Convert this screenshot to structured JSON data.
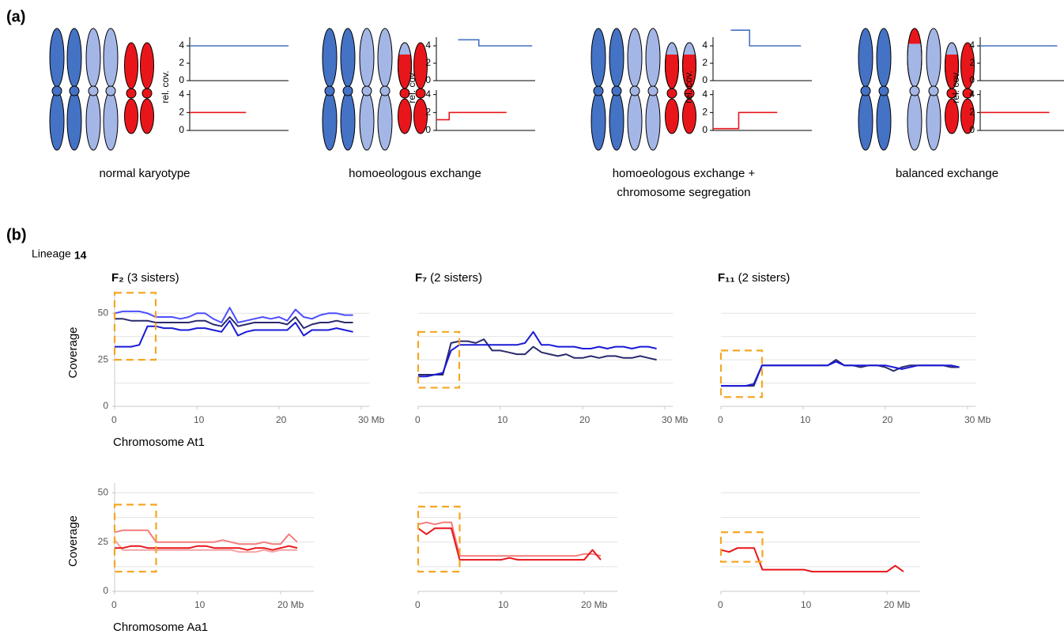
{
  "panel_labels": {
    "a": "(a)",
    "b": "(b)"
  },
  "lineage": {
    "label": "Lineage",
    "number": "14"
  },
  "chart_data": [
    {
      "type": "karyotype",
      "caption": [
        "normal karyotype"
      ],
      "ylabel": "rel. cov.",
      "subplots": [
        {
          "ylim": [
            0,
            5
          ],
          "yticks": [
            0,
            2,
            4
          ],
          "xlim": [
            0,
            1
          ],
          "x": [
            0,
            1
          ],
          "values": [
            4,
            4
          ],
          "color": "#4472c4"
        },
        {
          "ylim": [
            0,
            4.5
          ],
          "yticks": [
            0,
            2,
            4
          ],
          "xlim": [
            0,
            1
          ],
          "x": [
            0,
            0.57
          ],
          "values": [
            2,
            2
          ],
          "color": "#e8161b"
        }
      ]
    },
    {
      "type": "karyotype",
      "caption": [
        "homoeologous exchange"
      ],
      "ylabel": "rel. cov.",
      "subplots": [
        {
          "ylim": [
            0,
            5
          ],
          "yticks": [
            0,
            2,
            4
          ],
          "xlim": [
            0,
            1
          ],
          "x": [
            0.22,
            0.43,
            0.43,
            0.97
          ],
          "values": [
            4.7,
            4.7,
            4,
            4
          ],
          "color": "#4472c4"
        },
        {
          "ylim": [
            0,
            4.5
          ],
          "yticks": [
            0,
            2,
            4
          ],
          "xlim": [
            0,
            1
          ],
          "x": [
            0,
            0.13,
            0.13,
            0.71
          ],
          "values": [
            1.2,
            1.2,
            2,
            2
          ],
          "color": "#e8161b"
        }
      ]
    },
    {
      "type": "karyotype",
      "caption": [
        "homoeologous exchange +",
        "chromosome segregation"
      ],
      "ylabel": "rel. cov.",
      "subplots": [
        {
          "ylim": [
            0,
            5
          ],
          "yticks": [
            0,
            2,
            4
          ],
          "xlim": [
            0,
            1
          ],
          "x": [
            0.18,
            0.37,
            0.37,
            0.89
          ],
          "values": [
            5.8,
            5.8,
            4,
            4
          ],
          "color": "#4472c4"
        },
        {
          "ylim": [
            0,
            4.5
          ],
          "yticks": [
            0,
            2,
            4
          ],
          "xlim": [
            0,
            1
          ],
          "x": [
            0,
            0.26,
            0.26,
            0.65
          ],
          "values": [
            0.2,
            0.2,
            2,
            2
          ],
          "color": "#e8161b"
        }
      ]
    },
    {
      "type": "karyotype",
      "caption": [
        "balanced exchange"
      ],
      "ylabel": "rel. cov.",
      "subplots": [
        {
          "ylim": [
            0,
            5
          ],
          "yticks": [
            0,
            2,
            4
          ],
          "xlim": [
            0,
            1
          ],
          "x": [
            0,
            0.78
          ],
          "values": [
            4,
            4
          ],
          "color": "#4472c4"
        },
        {
          "ylim": [
            0,
            4.5
          ],
          "yticks": [
            0,
            2,
            4
          ],
          "xlim": [
            0,
            1
          ],
          "x": [
            0,
            0.7
          ],
          "values": [
            2,
            2
          ],
          "color": "#e8161b"
        }
      ]
    },
    {
      "type": "line",
      "title_bold": "F₂",
      "title": "(3 sisters)",
      "ylabel": "Coverage",
      "xlabel": "Chromosome At1",
      "xlim": [
        0,
        31
      ],
      "xticks": [
        0,
        10,
        20,
        {
          "value": 30,
          "label": "30 Mb"
        }
      ],
      "ylim": [
        0,
        62
      ],
      "yticks": [
        0,
        25,
        50
      ],
      "gridlines": [
        12.5,
        25,
        37.5,
        50
      ],
      "highlight": {
        "x": [
          0,
          5
        ],
        "y": [
          25,
          61
        ],
        "color": "#f5a623"
      },
      "x": [
        0,
        1,
        2,
        3,
        4,
        5,
        6,
        7,
        8,
        9,
        10,
        11,
        12,
        13,
        14,
        15,
        16,
        17,
        18,
        19,
        20,
        21,
        22,
        23,
        24,
        25,
        26,
        27,
        28,
        29
      ],
      "series": [
        {
          "color": "#4d4dff",
          "values": [
            50,
            51,
            51,
            51,
            50,
            48,
            48,
            48,
            47,
            48,
            50,
            50,
            47,
            45,
            53,
            45,
            46,
            47,
            48,
            47,
            48,
            46,
            52,
            48,
            47,
            49,
            50,
            50,
            49,
            49
          ]
        },
        {
          "color": "#2a2a6e",
          "values": [
            47,
            47,
            46,
            46,
            46,
            45,
            45,
            45,
            45,
            45,
            46,
            46,
            44,
            43,
            48,
            43,
            44,
            45,
            45,
            45,
            45,
            44,
            48,
            42,
            44,
            45,
            45,
            46,
            45,
            45
          ]
        },
        {
          "color": "#1a1ad6",
          "values": [
            32,
            32,
            32,
            33,
            43,
            43,
            42,
            42,
            41,
            41,
            42,
            42,
            41,
            40,
            46,
            38,
            40,
            41,
            41,
            41,
            41,
            41,
            45,
            38,
            41,
            41,
            41,
            42,
            41,
            40
          ]
        }
      ]
    },
    {
      "type": "line",
      "title_bold": "F₇",
      "title": "(2 sisters)",
      "xlim": [
        0,
        31
      ],
      "xticks": [
        0,
        10,
        20,
        {
          "value": 30,
          "label": "30 Mb"
        }
      ],
      "ylim": [
        0,
        62
      ],
      "gridlines": [
        12.5,
        25,
        37.5,
        50
      ],
      "highlight": {
        "x": [
          0,
          5
        ],
        "y": [
          10,
          40
        ],
        "color": "#f5a623"
      },
      "x": [
        0,
        1,
        2,
        3,
        4,
        5,
        6,
        7,
        8,
        9,
        10,
        11,
        12,
        13,
        14,
        15,
        16,
        17,
        18,
        19,
        20,
        21,
        22,
        23,
        24,
        25,
        26,
        27,
        28,
        29
      ],
      "series": [
        {
          "color": "#2a2a6e",
          "values": [
            17,
            17,
            17,
            17,
            34,
            35,
            35,
            34,
            36,
            30,
            30,
            29,
            28,
            28,
            32,
            29,
            28,
            27,
            28,
            26,
            26,
            27,
            26,
            27,
            27,
            26,
            26,
            27,
            26,
            25
          ]
        },
        {
          "color": "#1a1ad6",
          "values": [
            16,
            16,
            17,
            18,
            30,
            33,
            33,
            33,
            33,
            33,
            33,
            33,
            33,
            34,
            40,
            33,
            33,
            32,
            32,
            32,
            31,
            31,
            32,
            31,
            32,
            32,
            31,
            32,
            32,
            31
          ]
        }
      ]
    },
    {
      "type": "line",
      "title_bold": "F₁₁",
      "title": "(2 sisters)",
      "xlim": [
        0,
        31
      ],
      "xticks": [
        0,
        10,
        20,
        {
          "value": 30,
          "label": "30 Mb"
        }
      ],
      "ylim": [
        0,
        62
      ],
      "gridlines": [
        12.5,
        25,
        37.5,
        50
      ],
      "highlight": {
        "x": [
          0,
          5
        ],
        "y": [
          5,
          30
        ],
        "color": "#f5a623"
      },
      "x": [
        0,
        1,
        2,
        3,
        4,
        5,
        6,
        7,
        8,
        9,
        10,
        11,
        12,
        13,
        14,
        15,
        16,
        17,
        18,
        19,
        20,
        21,
        22,
        23,
        24,
        25,
        26,
        27,
        28,
        29
      ],
      "series": [
        {
          "color": "#2a2a6e",
          "values": [
            11,
            11,
            11,
            11,
            11,
            22,
            22,
            22,
            22,
            22,
            22,
            22,
            22,
            22,
            25,
            22,
            22,
            21,
            22,
            22,
            21,
            19,
            21,
            22,
            22,
            22,
            22,
            22,
            21,
            21
          ]
        },
        {
          "color": "#1a1ad6",
          "values": [
            11,
            11,
            11,
            11,
            12,
            22,
            22,
            22,
            22,
            22,
            22,
            22,
            22,
            22,
            24,
            22,
            22,
            22,
            22,
            22,
            22,
            21,
            20,
            21,
            22,
            22,
            22,
            22,
            22,
            21
          ]
        }
      ]
    },
    {
      "type": "line",
      "ylabel": "Coverage",
      "xlabel": "Chromosome Aa1",
      "xlim": [
        0,
        24
      ],
      "xticks": [
        0,
        10,
        {
          "value": 20,
          "label": "20 Mb"
        }
      ],
      "ylim": [
        0,
        55
      ],
      "yticks": [
        0,
        25,
        50
      ],
      "gridlines": [
        12.5,
        25,
        37.5,
        50
      ],
      "highlight": {
        "x": [
          0,
          5
        ],
        "y": [
          10,
          44
        ],
        "color": "#f5a623"
      },
      "x": [
        0,
        1,
        2,
        3,
        4,
        5,
        6,
        7,
        8,
        9,
        10,
        11,
        12,
        13,
        14,
        15,
        16,
        17,
        18,
        19,
        20,
        21,
        22
      ],
      "series": [
        {
          "color": "#f47c7c",
          "values": [
            30,
            31,
            31,
            31,
            31,
            25,
            25,
            25,
            25,
            25,
            25,
            25,
            25,
            26,
            25,
            24,
            24,
            24,
            25,
            24,
            24,
            29,
            25
          ]
        },
        {
          "color": "#f2a3a3",
          "values": [
            26,
            21,
            21,
            21,
            21,
            21,
            21,
            21,
            21,
            21,
            21,
            21,
            21,
            21,
            21,
            20,
            20,
            20,
            21,
            20,
            21,
            21,
            21
          ]
        },
        {
          "color": "#e8161b",
          "values": [
            22,
            22,
            23,
            23,
            22,
            22,
            22,
            22,
            22,
            22,
            23,
            23,
            22,
            22,
            22,
            22,
            21,
            22,
            22,
            21,
            22,
            23,
            22
          ]
        }
      ]
    },
    {
      "type": "line",
      "xlim": [
        0,
        24
      ],
      "xticks": [
        0,
        10,
        {
          "value": 20,
          "label": "20 Mb"
        }
      ],
      "ylim": [
        0,
        55
      ],
      "gridlines": [
        12.5,
        25,
        37.5,
        50
      ],
      "highlight": {
        "x": [
          0,
          5
        ],
        "y": [
          10,
          43
        ],
        "color": "#f5a623"
      },
      "x": [
        0,
        1,
        2,
        3,
        4,
        5,
        6,
        7,
        8,
        9,
        10,
        11,
        12,
        13,
        14,
        15,
        16,
        17,
        18,
        19,
        20,
        21,
        22
      ],
      "series": [
        {
          "color": "#f47c7c",
          "values": [
            34,
            35,
            34,
            35,
            35,
            18,
            18,
            18,
            18,
            18,
            18,
            18,
            18,
            18,
            18,
            18,
            18,
            18,
            18,
            18,
            19,
            19,
            18
          ]
        },
        {
          "color": "#e8161b",
          "values": [
            32,
            29,
            32,
            32,
            32,
            16,
            16,
            16,
            16,
            16,
            16,
            17,
            16,
            16,
            16,
            16,
            16,
            16,
            16,
            16,
            16,
            21,
            16
          ]
        }
      ]
    },
    {
      "type": "line",
      "xlim": [
        0,
        24
      ],
      "xticks": [
        0,
        10,
        {
          "value": 20,
          "label": "20 Mb"
        }
      ],
      "ylim": [
        0,
        55
      ],
      "gridlines": [
        12.5,
        25,
        37.5,
        50
      ],
      "highlight": {
        "x": [
          0,
          5
        ],
        "y": [
          15,
          30
        ],
        "color": "#f5a623"
      },
      "x": [
        0,
        1,
        2,
        3,
        4,
        5,
        6,
        7,
        8,
        9,
        10,
        11,
        12,
        13,
        14,
        15,
        16,
        17,
        18,
        19,
        20,
        21,
        22
      ],
      "series": [
        {
          "color": "#e8161b",
          "values": [
            21,
            20,
            22,
            22,
            22,
            11,
            11,
            11,
            11,
            11,
            11,
            10,
            10,
            10,
            10,
            10,
            10,
            10,
            10,
            10,
            10,
            13,
            10
          ]
        }
      ]
    }
  ]
}
